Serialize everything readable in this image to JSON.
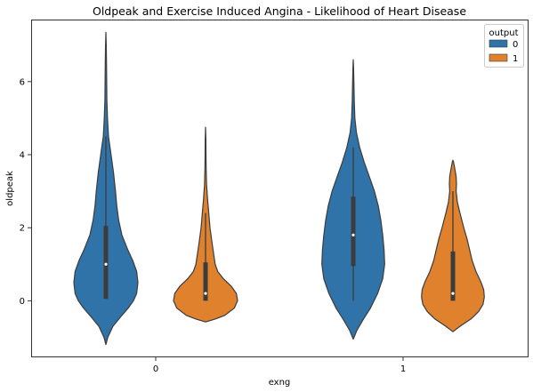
{
  "chart_data": {
    "type": "violin",
    "title": "Oldpeak and Exercise Induced Angina - Likelihood of Heart Disease",
    "xlabel": "exng",
    "ylabel": "oldpeak",
    "categories": [
      "0",
      "1"
    ],
    "ylim": [
      -1.55,
      7.7
    ],
    "yticks": [
      0,
      2,
      4,
      6
    ],
    "grid": false,
    "legend": {
      "title": "output",
      "placement": "top-right"
    },
    "series": [
      {
        "name": "0",
        "color": "#2f73a8",
        "groups": [
          {
            "category": "0",
            "density": [
              [
                -1.2,
                0.0
              ],
              [
                -1.0,
                0.06
              ],
              [
                -0.7,
                0.22
              ],
              [
                -0.4,
                0.5
              ],
              [
                -0.2,
                0.7
              ],
              [
                0.0,
                0.86
              ],
              [
                0.2,
                0.96
              ],
              [
                0.5,
                1.0
              ],
              [
                0.8,
                0.96
              ],
              [
                1.1,
                0.84
              ],
              [
                1.4,
                0.68
              ],
              [
                1.8,
                0.5
              ],
              [
                2.2,
                0.4
              ],
              [
                2.6,
                0.34
              ],
              [
                3.0,
                0.3
              ],
              [
                3.5,
                0.24
              ],
              [
                4.0,
                0.16
              ],
              [
                4.5,
                0.08
              ],
              [
                5.0,
                0.05
              ],
              [
                5.5,
                0.03
              ],
              [
                6.0,
                0.025
              ],
              [
                6.5,
                0.02
              ],
              [
                7.0,
                0.01
              ],
              [
                7.35,
                0.0
              ]
            ],
            "whisker": [
              0.05,
              4.5
            ],
            "quartiles": [
              0.05,
              2.05
            ],
            "median": 1.0
          },
          {
            "category": "1",
            "density": [
              [
                -1.05,
                0.0
              ],
              [
                -0.8,
                0.12
              ],
              [
                -0.5,
                0.32
              ],
              [
                -0.2,
                0.54
              ],
              [
                0.2,
                0.76
              ],
              [
                0.6,
                0.92
              ],
              [
                1.0,
                0.98
              ],
              [
                1.4,
                0.96
              ],
              [
                1.8,
                0.92
              ],
              [
                2.2,
                0.86
              ],
              [
                2.6,
                0.78
              ],
              [
                3.0,
                0.66
              ],
              [
                3.4,
                0.5
              ],
              [
                3.8,
                0.34
              ],
              [
                4.2,
                0.2
              ],
              [
                4.6,
                0.1
              ],
              [
                5.0,
                0.05
              ],
              [
                5.5,
                0.03
              ],
              [
                6.0,
                0.02
              ],
              [
                6.35,
                0.01
              ],
              [
                6.6,
                0.0
              ]
            ],
            "whisker": [
              0.0,
              4.2
            ],
            "quartiles": [
              0.95,
              2.85
            ],
            "median": 1.8
          }
        ]
      },
      {
        "name": "1",
        "color": "#e0812e",
        "groups": [
          {
            "category": "0",
            "density": [
              [
                -0.58,
                0.0
              ],
              [
                -0.5,
                0.3
              ],
              [
                -0.4,
                0.6
              ],
              [
                -0.2,
                0.9
              ],
              [
                0.0,
                1.0
              ],
              [
                0.2,
                0.96
              ],
              [
                0.4,
                0.8
              ],
              [
                0.6,
                0.56
              ],
              [
                0.8,
                0.38
              ],
              [
                1.0,
                0.3
              ],
              [
                1.3,
                0.25
              ],
              [
                1.6,
                0.2
              ],
              [
                2.0,
                0.14
              ],
              [
                2.4,
                0.1
              ],
              [
                2.8,
                0.06
              ],
              [
                3.2,
                0.03
              ],
              [
                3.6,
                0.02
              ],
              [
                4.0,
                0.015
              ],
              [
                4.4,
                0.01
              ],
              [
                4.75,
                0.0
              ]
            ],
            "whisker": [
              0.0,
              2.4
            ],
            "quartiles": [
              0.0,
              1.05
            ],
            "median": 0.2
          },
          {
            "category": "1",
            "density": [
              [
                -0.85,
                0.0
              ],
              [
                -0.7,
                0.22
              ],
              [
                -0.5,
                0.56
              ],
              [
                -0.3,
                0.8
              ],
              [
                -0.1,
                0.94
              ],
              [
                0.1,
                0.98
              ],
              [
                0.3,
                0.96
              ],
              [
                0.5,
                0.88
              ],
              [
                0.8,
                0.72
              ],
              [
                1.1,
                0.6
              ],
              [
                1.4,
                0.52
              ],
              [
                1.7,
                0.44
              ],
              [
                2.0,
                0.34
              ],
              [
                2.4,
                0.22
              ],
              [
                2.7,
                0.14
              ],
              [
                3.0,
                0.1
              ],
              [
                3.2,
                0.11
              ],
              [
                3.4,
                0.1
              ],
              [
                3.6,
                0.06
              ],
              [
                3.8,
                0.02
              ],
              [
                3.85,
                0.0
              ]
            ],
            "whisker": [
              0.0,
              3.0
            ],
            "quartiles": [
              0.0,
              1.35
            ],
            "median": 0.2
          }
        ]
      }
    ]
  }
}
